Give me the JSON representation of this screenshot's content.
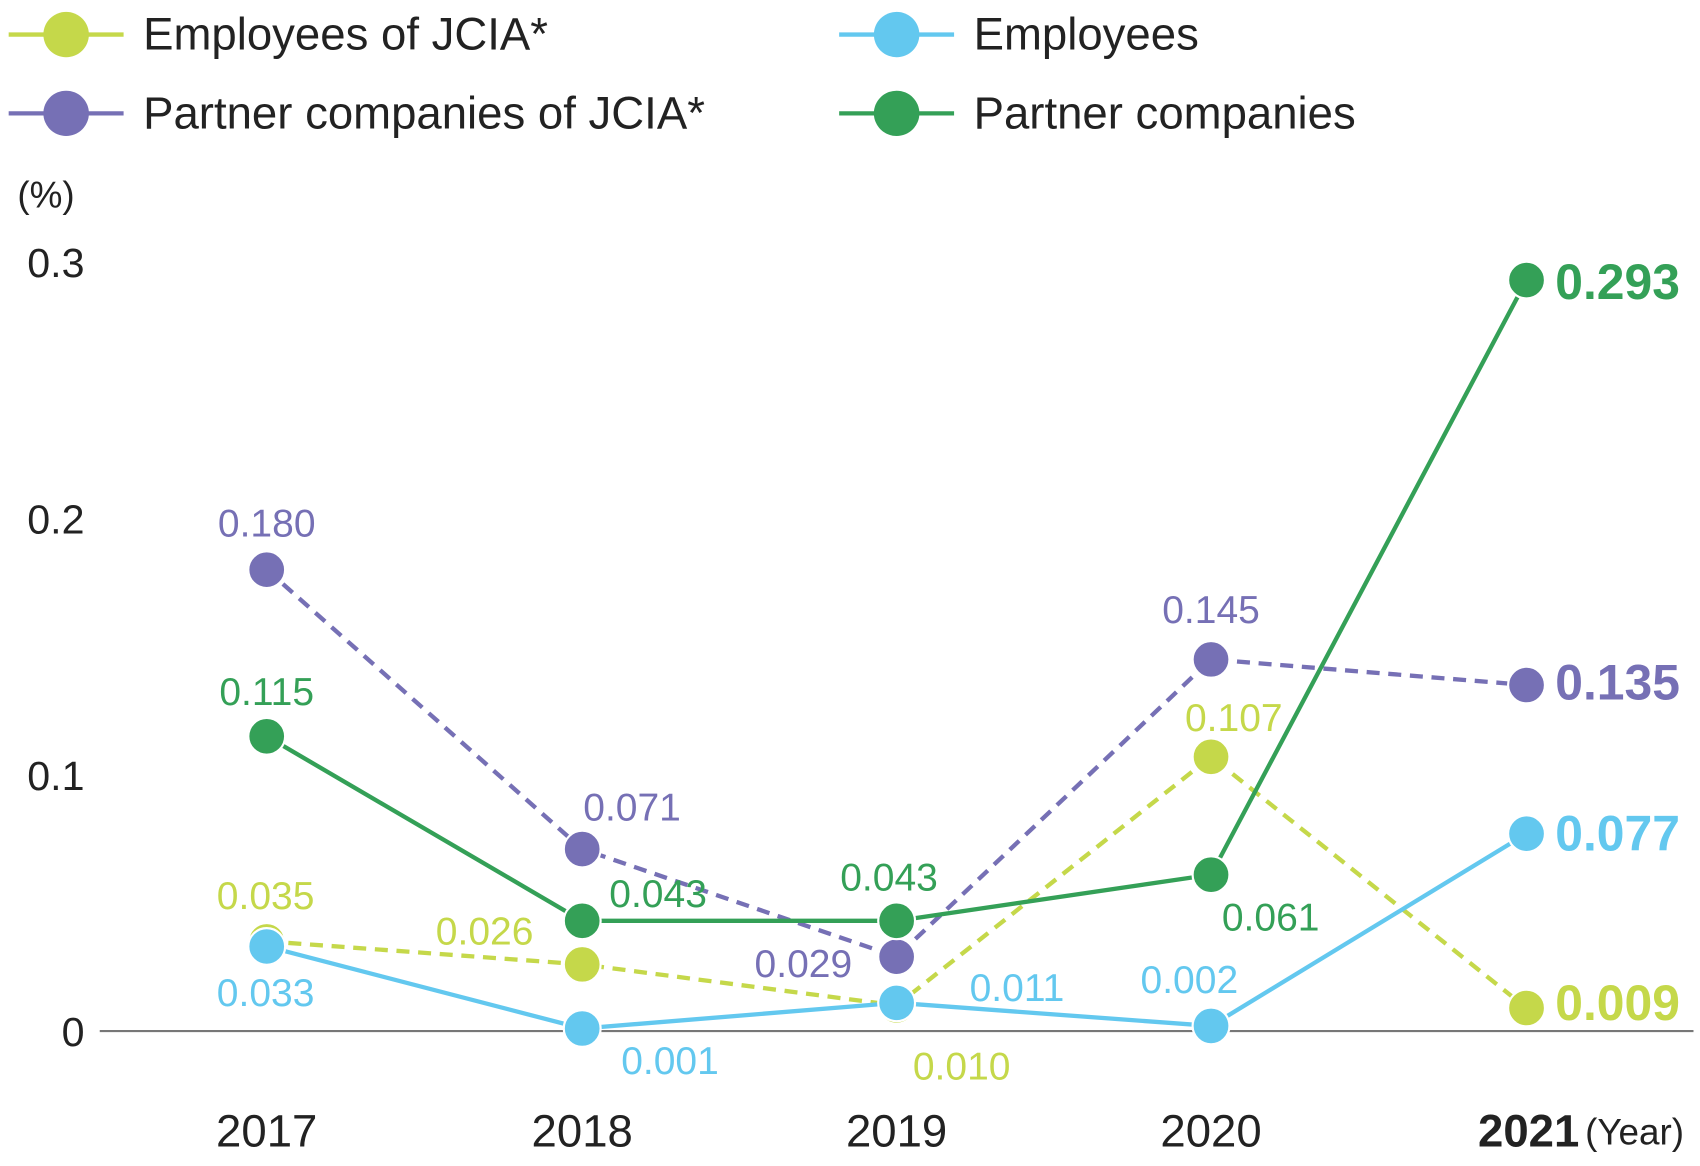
{
  "chart_data": {
    "type": "line",
    "title": "",
    "ylabel": "(%)",
    "xlabel": "(Year)",
    "categories": [
      "2017",
      "2018",
      "2019",
      "2020",
      "2021"
    ],
    "ylim": [
      0,
      0.3
    ],
    "yticks": [
      "0",
      "0.1",
      "0.2",
      "0.3"
    ],
    "grid": false,
    "legend_placement": "top",
    "series": [
      {
        "name": "Employees of JCIA*",
        "color": "#c5d84a",
        "dashed": true,
        "values": [
          0.035,
          0.026,
          0.01,
          0.107,
          0.009
        ],
        "labels": [
          "0.035",
          "0.026",
          "0.010",
          "0.107",
          "0.009"
        ]
      },
      {
        "name": "Employees",
        "color": "#63c8ef",
        "dashed": false,
        "values": [
          0.033,
          0.001,
          0.011,
          0.002,
          0.077
        ],
        "labels": [
          "0.033",
          "0.001",
          "0.011",
          "0.002",
          "0.077"
        ]
      },
      {
        "name": "Partner companies of JCIA*",
        "color": "#7670b5",
        "dashed": true,
        "values": [
          0.18,
          0.071,
          0.029,
          0.145,
          0.135
        ],
        "labels": [
          "0.180",
          "0.071",
          "0.029",
          "0.145",
          "0.135"
        ]
      },
      {
        "name": "Partner companies",
        "color": "#34a057",
        "dashed": false,
        "values": [
          0.115,
          0.043,
          0.043,
          0.061,
          0.293
        ],
        "labels": [
          "0.115",
          "0.043",
          "0.043",
          "0.061",
          "0.293"
        ]
      }
    ]
  }
}
